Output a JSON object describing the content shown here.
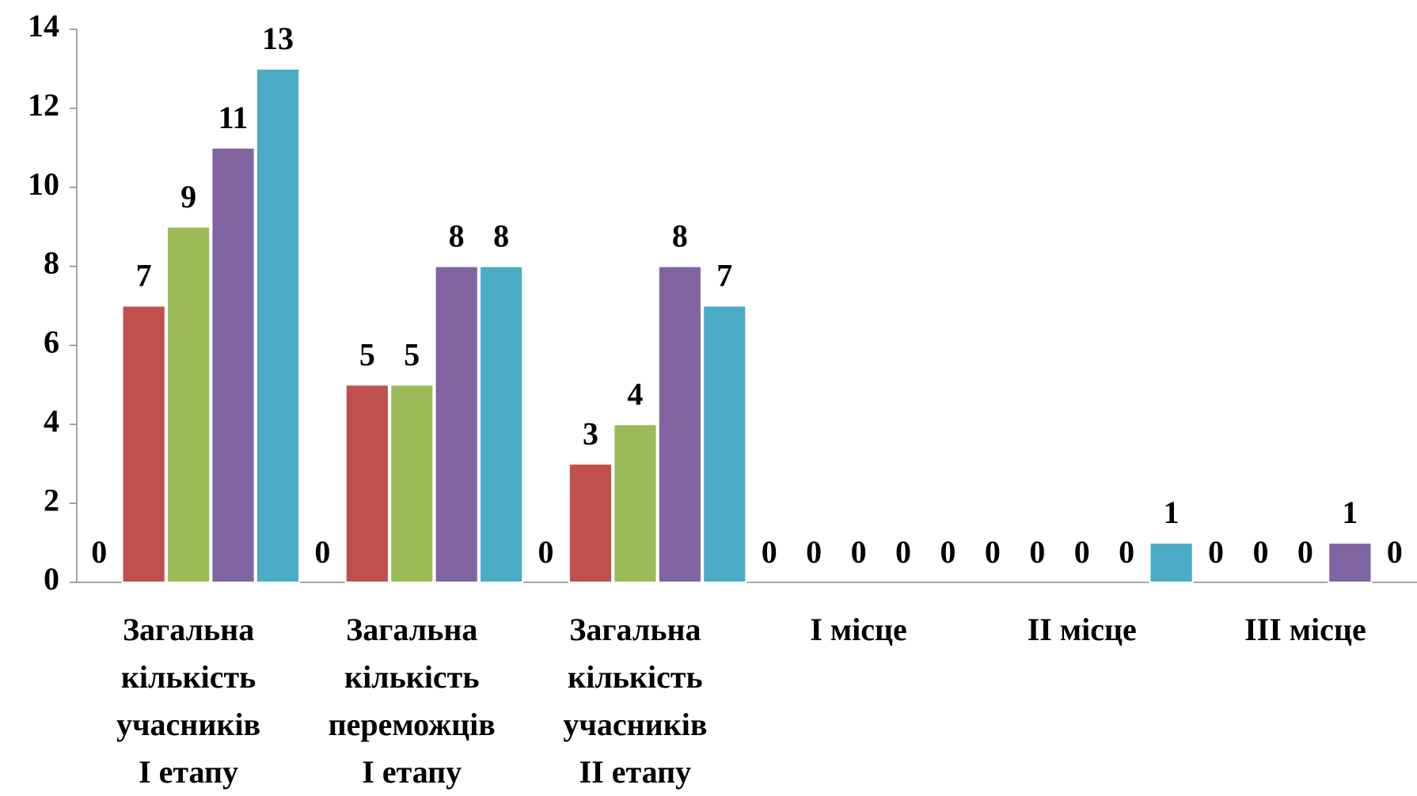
{
  "chart_data": {
    "type": "bar",
    "categories": [
      "Загальна\nкількість\nучасників\nІ етапу",
      "Загальна\nкількість\nпереможців\nІ етапу",
      "Загальна\nкількість\nучасників\nІІ етапу",
      "І місце",
      "ІІ місце",
      "ІІІ місце"
    ],
    "series": [
      {
        "color": "#4f81bd",
        "values": [
          0,
          0,
          0,
          0,
          0,
          0
        ]
      },
      {
        "color": "#c0504d",
        "values": [
          7,
          5,
          3,
          0,
          0,
          0
        ]
      },
      {
        "color": "#9bbb59",
        "values": [
          9,
          5,
          4,
          0,
          0,
          0
        ]
      },
      {
        "color": "#8064a2",
        "values": [
          11,
          8,
          8,
          0,
          0,
          1
        ]
      },
      {
        "color": "#4bacc6",
        "values": [
          13,
          8,
          7,
          0,
          1,
          0
        ]
      }
    ],
    "ylim": [
      0,
      14
    ],
    "yticks": [
      0,
      2,
      4,
      6,
      8,
      10,
      12,
      14
    ],
    "grid": false
  }
}
